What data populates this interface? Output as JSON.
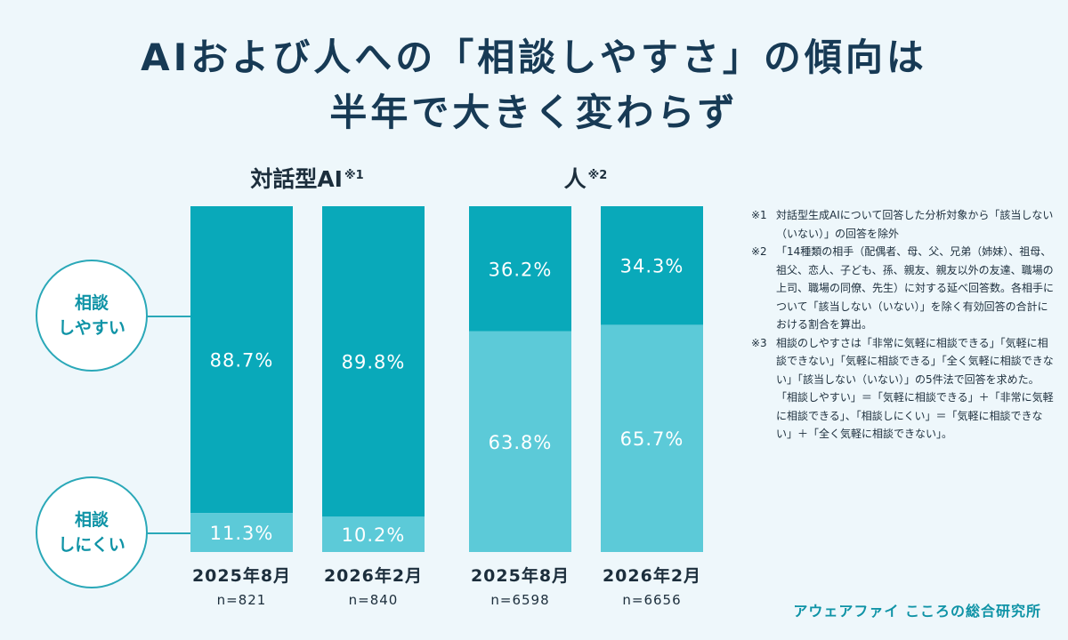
{
  "title": {
    "line1": "AIおよび人への「相談しやすさ」の傾向は",
    "line2": "半年で大きく変わらず"
  },
  "groups": [
    {
      "label": "対話型AI",
      "note_mark": "※1"
    },
    {
      "label": "人",
      "note_mark": "※2"
    }
  ],
  "legend": {
    "easy": "相談\nしやすい",
    "hard": "相談\nしにくい"
  },
  "colors": {
    "easy": "#09a9ba",
    "hard": "#5ccad8",
    "accent": "#2aa8b8"
  },
  "chart_data": {
    "type": "bar",
    "stacked": true,
    "unit": "%",
    "ylim": [
      0,
      100
    ],
    "categories": [
      {
        "group": "対話型AI",
        "label": "2025年8月",
        "n": "n=821"
      },
      {
        "group": "対話型AI",
        "label": "2026年2月",
        "n": "n=840"
      },
      {
        "group": "人",
        "label": "2025年8月",
        "n": "n=6598"
      },
      {
        "group": "人",
        "label": "2026年2月",
        "n": "n=6656"
      }
    ],
    "series": [
      {
        "name": "相談しやすい",
        "values": [
          88.7,
          89.8,
          36.2,
          34.3
        ],
        "labels": [
          "88.7%",
          "89.8%",
          "36.2%",
          "34.3%"
        ]
      },
      {
        "name": "相談しにくい",
        "values": [
          11.3,
          10.2,
          63.8,
          65.7
        ],
        "labels": [
          "11.3%",
          "10.2%",
          "63.8%",
          "65.7%"
        ]
      }
    ]
  },
  "notes": [
    {
      "mark": "※1",
      "text": "対話型生成AIについて回答した分析対象から「該当しない（いない）」の回答を除外"
    },
    {
      "mark": "※2",
      "text": "「14種類の相手（配偶者、母、父、兄弟（姉妹）、祖母、祖父、恋人、子ども、孫、親友、親友以外の友達、職場の上司、職場の同僚、先生）に対する延べ回答数。各相手について「該当しない（いない）」を除く有効回答の合計における割合を算出。"
    },
    {
      "mark": "※3",
      "text": "相談のしやすさは「非常に気軽に相談できる」「気軽に相談できない」「気軽に相談できる」「全く気軽に相談できない」「該当しない（いない）」の5件法で回答を求めた。「相談しやすい」＝「気軽に相談できる」＋「非常に気軽に相談できる」、「相談しにくい」＝「気軽に相談できない」＋「全く気軽に相談できない」。"
    }
  ],
  "brand": "アウェアファイ こころの総合研究所"
}
